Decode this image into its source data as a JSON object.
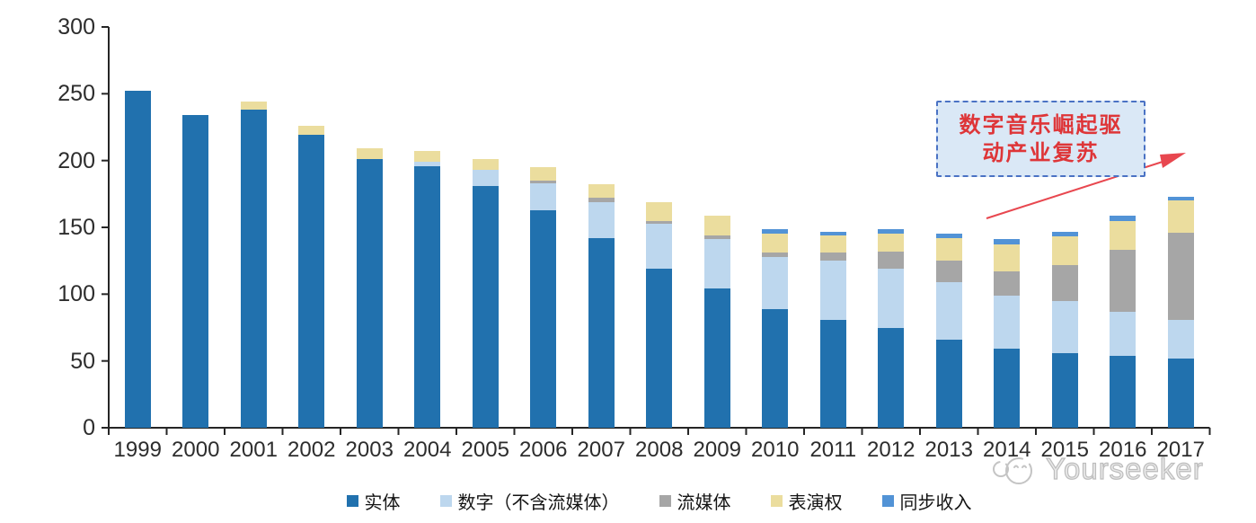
{
  "chart_data": {
    "type": "bar",
    "variant": "stacked",
    "title": "",
    "xlabel": "",
    "ylabel": "",
    "ylim": [
      0,
      300
    ],
    "yticks": [
      0,
      50,
      100,
      150,
      200,
      250,
      300
    ],
    "grid": false,
    "legend_position": "bottom",
    "axis_color": "#262626",
    "categories": [
      "1999",
      "2000",
      "2001",
      "2002",
      "2003",
      "2004",
      "2005",
      "2006",
      "2007",
      "2008",
      "2009",
      "2010",
      "2011",
      "2012",
      "2013",
      "2014",
      "2015",
      "2016",
      "2017"
    ],
    "series": [
      {
        "name": "实体",
        "color": "#2171AE",
        "values": [
          252,
          234,
          238,
          219,
          201,
          196,
          181,
          163,
          142,
          119,
          104,
          89,
          81,
          75,
          66,
          59,
          56,
          54,
          52
        ]
      },
      {
        "name": "数字（不含流媒体）",
        "color": "#BDD7EE",
        "values": [
          0,
          0,
          0,
          0,
          0,
          3,
          12,
          20,
          27,
          34,
          37,
          39,
          44,
          44,
          43,
          40,
          39,
          33,
          29
        ]
      },
      {
        "name": "流媒体",
        "color": "#A6A6A6",
        "values": [
          0,
          0,
          0,
          0,
          0,
          0,
          0,
          2,
          3,
          2,
          3,
          3,
          6,
          13,
          16,
          18,
          27,
          46,
          65
        ]
      },
      {
        "name": "表演权",
        "color": "#EBDD9E",
        "values": [
          0,
          0,
          6,
          7,
          8,
          8,
          8,
          10,
          10,
          14,
          15,
          14,
          13,
          13,
          17,
          20,
          21,
          22,
          24
        ]
      },
      {
        "name": "同步收入",
        "color": "#5293D6",
        "values": [
          0,
          0,
          0,
          0,
          0,
          0,
          0,
          0,
          0,
          0,
          0,
          4,
          3,
          4,
          3,
          4,
          4,
          4,
          3
        ]
      }
    ]
  },
  "annotation": {
    "line1": "数字音乐崛起驱",
    "line2": "动产业复苏",
    "full_text": "数字音乐崛起驱动产业复苏",
    "text_color": "#DE3538",
    "border_color": "#4A72C4",
    "fill_color": "#DAE8F6",
    "arrow_color": "#E8474F"
  },
  "watermark": {
    "text": "Yourseeker"
  }
}
